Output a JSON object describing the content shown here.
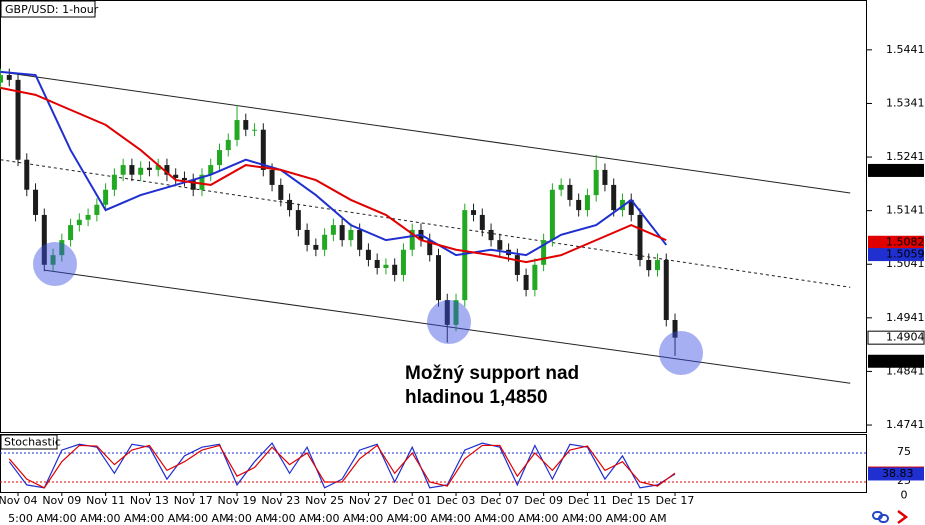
{
  "chart_data": [
    {
      "type": "candlestick",
      "title": "GBP/USD: 1-hour",
      "categories": [
        null,
        null,
        "Nov 04",
        null,
        null,
        null,
        null,
        "Nov 09",
        null,
        null,
        null,
        null,
        "Nov 11",
        null,
        null,
        null,
        null,
        "Nov 13",
        null,
        null,
        null,
        null,
        "Nov 17",
        null,
        null,
        null,
        null,
        "Nov 19",
        null,
        null,
        null,
        null,
        "Nov 23",
        null,
        null,
        null,
        null,
        "Nov 25",
        null,
        null,
        null,
        null,
        "Nov 27",
        null,
        null,
        null,
        null,
        "Dec 01",
        null,
        null,
        null,
        null,
        "Dec 03",
        null,
        null,
        null,
        null,
        "Dec 07",
        null,
        null,
        null,
        null,
        "Dec 09",
        null,
        null,
        null,
        null,
        "Dec 11",
        null,
        null,
        null,
        null,
        "Dec 15",
        null,
        null,
        null,
        null,
        "Dec 17"
      ],
      "time_labels": [
        null,
        null,
        null,
        "5:00 AM",
        null,
        null,
        null,
        null,
        "4:00 AM",
        null,
        null,
        null,
        null,
        "4:00 AM",
        null,
        null,
        null,
        null,
        "4:00 AM",
        null,
        null,
        null,
        null,
        "4:00 AM",
        null,
        null,
        null,
        null,
        "4:00 AM",
        null,
        null,
        null,
        null,
        "4:00 AM",
        null,
        null,
        null,
        null,
        "4:00 AM",
        null,
        null,
        null,
        null,
        "4:00 AM",
        null,
        null,
        null,
        null,
        "4:00 AM",
        null,
        null,
        null,
        null,
        "4:00 AM",
        null,
        null,
        null,
        null,
        "4:00 AM",
        null,
        null,
        null,
        null,
        "4:00 AM",
        null,
        null,
        null,
        null,
        "4:00 AM",
        null,
        null,
        null,
        null,
        "4:00 AM",
        null,
        null,
        null,
        null
      ],
      "open": [
        1.538,
        1.5394,
        1.5385,
        1.5236,
        1.518,
        1.5133,
        1.504,
        1.5058,
        1.5086,
        1.5114,
        1.5124,
        1.5133,
        1.5152,
        1.518,
        1.5208,
        1.5226,
        1.5208,
        1.5221,
        1.5217,
        1.5226,
        1.5208,
        1.5202,
        1.5198,
        1.518,
        1.5208,
        1.5226,
        1.5254,
        1.5273,
        1.531,
        1.5292,
        1.5292,
        1.5217,
        1.5189,
        1.5161,
        1.5142,
        1.5105,
        1.5077,
        1.5068,
        1.5096,
        1.5114,
        1.5086,
        1.5105,
        1.5068,
        1.5049,
        1.5034,
        1.504,
        1.5021,
        1.5068,
        1.5105,
        1.5086,
        1.5058,
        1.4974,
        1.4928,
        1.4974,
        1.5142,
        1.5133,
        1.5105,
        1.5086,
        1.5068,
        1.5058,
        1.5021,
        1.4993,
        1.504,
        1.5086,
        1.518,
        1.5189,
        1.5161,
        1.5142,
        1.517,
        1.5217,
        1.5189,
        1.5142,
        1.5161,
        1.5133,
        1.5049,
        1.503,
        1.5049,
        1.4937
      ],
      "high": [
        1.5406,
        1.5406,
        1.5397,
        1.5248,
        1.5192,
        1.5145,
        1.507,
        1.5098,
        1.5126,
        1.5136,
        1.5145,
        1.5164,
        1.5192,
        1.522,
        1.5238,
        1.5238,
        1.5233,
        1.5233,
        1.5238,
        1.5238,
        1.522,
        1.5214,
        1.521,
        1.522,
        1.5238,
        1.5266,
        1.5285,
        1.5338,
        1.5322,
        1.5304,
        1.5304,
        1.5229,
        1.5201,
        1.5173,
        1.5154,
        1.5117,
        1.5089,
        1.5108,
        1.5126,
        1.5126,
        1.5117,
        1.5117,
        1.508,
        1.5061,
        1.5052,
        1.5052,
        1.508,
        1.5117,
        1.5117,
        1.5098,
        1.507,
        1.4986,
        1.4986,
        1.5154,
        1.5154,
        1.5145,
        1.5117,
        1.5098,
        1.508,
        1.507,
        1.5033,
        1.5052,
        1.5098,
        1.5192,
        1.5201,
        1.5201,
        1.5173,
        1.5182,
        1.5245,
        1.5229,
        1.5201,
        1.5173,
        1.5173,
        1.5145,
        1.5061,
        1.5061,
        1.5061,
        1.4949
      ],
      "low": [
        1.5368,
        1.5373,
        1.5224,
        1.5168,
        1.5121,
        1.5028,
        1.5028,
        1.5046,
        1.5074,
        1.5102,
        1.5112,
        1.5121,
        1.514,
        1.5168,
        1.5196,
        1.5196,
        1.5196,
        1.5205,
        1.5205,
        1.5196,
        1.519,
        1.5186,
        1.5168,
        1.5168,
        1.5196,
        1.5214,
        1.5242,
        1.5261,
        1.528,
        1.528,
        1.5205,
        1.5177,
        1.5149,
        1.513,
        1.5093,
        1.5065,
        1.5056,
        1.5056,
        1.5084,
        1.5074,
        1.5074,
        1.5056,
        1.5037,
        1.5022,
        1.5022,
        1.5009,
        1.5009,
        1.5056,
        1.5074,
        1.5046,
        1.4962,
        1.4895,
        1.4916,
        1.4962,
        1.5121,
        1.5093,
        1.5074,
        1.5056,
        1.5046,
        1.5009,
        1.4981,
        1.4981,
        1.5028,
        1.5074,
        1.5168,
        1.5149,
        1.513,
        1.513,
        1.5158,
        1.5177,
        1.513,
        1.513,
        1.5121,
        1.5037,
        1.5018,
        1.5018,
        1.4925,
        1.487
      ],
      "close": [
        1.5394,
        1.5385,
        1.5236,
        1.518,
        1.5133,
        1.504,
        1.5058,
        1.5086,
        1.5114,
        1.5124,
        1.5133,
        1.5152,
        1.518,
        1.5208,
        1.5226,
        1.5208,
        1.5221,
        1.5217,
        1.5226,
        1.5208,
        1.5202,
        1.5198,
        1.518,
        1.5208,
        1.5226,
        1.5254,
        1.5273,
        1.531,
        1.5292,
        1.5292,
        1.5217,
        1.5189,
        1.5161,
        1.5142,
        1.5105,
        1.5077,
        1.5068,
        1.5096,
        1.5114,
        1.5086,
        1.5105,
        1.5068,
        1.5049,
        1.5034,
        1.504,
        1.5021,
        1.5068,
        1.5105,
        1.5086,
        1.5058,
        1.4974,
        1.4928,
        1.4974,
        1.5142,
        1.5133,
        1.5105,
        1.5086,
        1.5068,
        1.5058,
        1.5021,
        1.4993,
        1.504,
        1.5086,
        1.518,
        1.5189,
        1.5161,
        1.5142,
        1.517,
        1.5217,
        1.5189,
        1.5142,
        1.5161,
        1.5133,
        1.5049,
        1.503,
        1.5049,
        1.4937,
        1.4904
      ],
      "up_color": "#22a822",
      "down_color": "#1c1c1c",
      "ylim": [
        1.4728,
        1.5534
      ],
      "yticks": [
        1.5441,
        1.5341,
        1.5241,
        1.5141,
        1.5041,
        1.4941,
        1.4841,
        1.4741
      ],
      "moving_averages": {
        "x": [
          0,
          4,
          8,
          12,
          16,
          20,
          24,
          28,
          32,
          36,
          40,
          44,
          48,
          52,
          56,
          60,
          64,
          68,
          72,
          76
        ],
        "series": [
          {
            "color": "#1f2fd0",
            "values": [
              1.54,
              1.5394,
              1.5254,
              1.5142,
              1.517,
              1.5189,
              1.5208,
              1.5236,
              1.5217,
              1.517,
              1.5114,
              1.5086,
              1.5096,
              1.5058,
              1.5068,
              1.5058,
              1.5096,
              1.5114,
              1.5161,
              1.5077
            ]
          },
          {
            "color": "#e00000",
            "values": [
              1.537,
              1.5357,
              1.5329,
              1.5301,
              1.5254,
              1.5198,
              1.5189,
              1.5226,
              1.5217,
              1.5198,
              1.5161,
              1.5133,
              1.5086,
              1.5068,
              1.5058,
              1.5045,
              1.5058,
              1.5086,
              1.5114,
              1.5086
            ]
          }
        ]
      },
      "trendlines": [
        {
          "x": [
            0,
            97
          ],
          "values": [
            1.54,
            1.5174
          ],
          "style": "solid"
        },
        {
          "x": [
            0,
            97
          ],
          "values": [
            1.5236,
            1.4998
          ],
          "style": "dashed"
        },
        {
          "x": [
            5,
            97
          ],
          "values": [
            1.503,
            1.4819
          ],
          "style": "solid"
        }
      ],
      "price_tags": [
        {
          "value": 1.5216,
          "color": "#000000"
        },
        {
          "value": 1.5082,
          "color": "#e00000"
        },
        {
          "value": 1.5059,
          "color": "#1f2fd0"
        },
        {
          "value": 1.4904,
          "color": "#ffffff"
        },
        {
          "value": {
            "value": 1.486,
            "label": "1.4860"
          },
          "color": "#000000"
        }
      ],
      "annotation": [
        "Možný support nad",
        "hladinou 1,4850"
      ]
    },
    {
      "type": "line",
      "title": "Stochastic",
      "x": [
        1,
        3,
        5,
        7,
        9,
        11,
        13,
        15,
        17,
        19,
        21,
        23,
        25,
        27,
        29,
        31,
        33,
        35,
        37,
        39,
        41,
        43,
        45,
        47,
        49,
        51,
        53,
        55,
        57,
        59,
        61,
        63,
        65,
        67,
        69,
        71,
        73,
        75,
        77
      ],
      "series": [
        {
          "color": "#1f2fd0",
          "values": [
            60,
            20,
            15,
            80,
            90,
            85,
            40,
            90,
            85,
            30,
            70,
            85,
            90,
            20,
            60,
            92,
            40,
            85,
            15,
            30,
            80,
            90,
            25,
            85,
            15,
            20,
            80,
            92,
            85,
            20,
            88,
            30,
            90,
            85,
            30,
            70,
            15,
            20,
            38.83
          ]
        },
        {
          "color": "#e00000",
          "values": [
            65,
            30,
            15,
            60,
            88,
            87,
            55,
            80,
            88,
            45,
            60,
            80,
            88,
            35,
            50,
            85,
            55,
            75,
            25,
            25,
            65,
            88,
            40,
            75,
            25,
            18,
            65,
            88,
            88,
            35,
            75,
            45,
            80,
            87,
            45,
            60,
            25,
            18,
            40.44
          ]
        }
      ],
      "ylim": [
        0,
        100
      ],
      "yticks": [
        75,
        25,
        0
      ],
      "grid_colors": [
        "#1f2fd0",
        "#e00000",
        null
      ],
      "value_tags": [
        {
          "value": 40.44,
          "color": "#e00000"
        },
        {
          "value": 38.83,
          "color": "#1f2fd0"
        }
      ]
    }
  ]
}
